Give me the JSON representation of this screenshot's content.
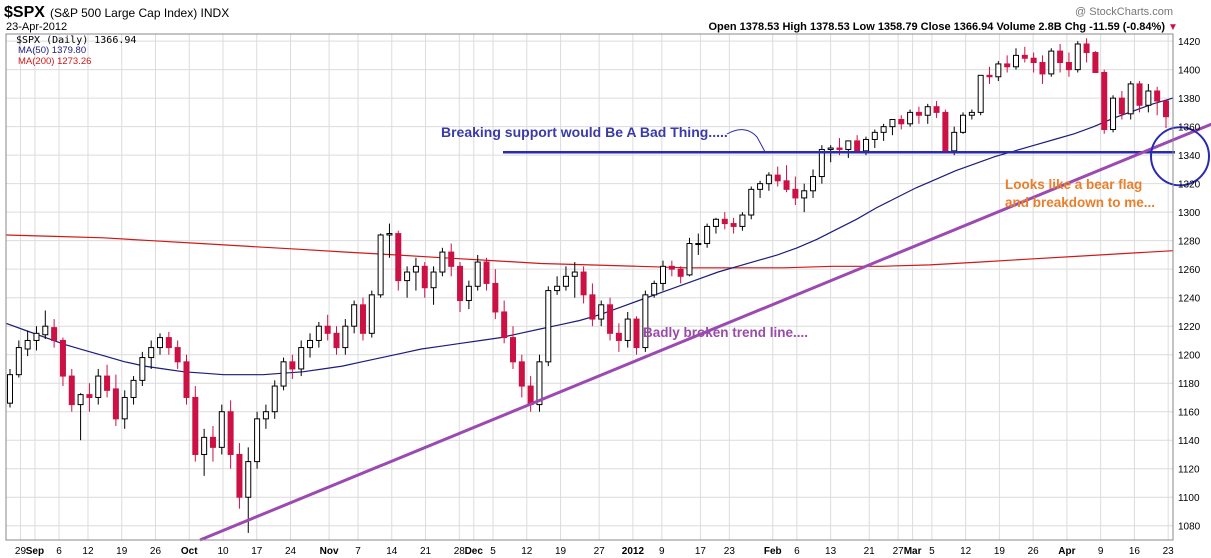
{
  "header": {
    "symbol": "$SPX",
    "name": "(S&P 500 Large Cap Index) INDX",
    "date": "23-Apr-2012",
    "watermark": "@ StockCharts.com",
    "ohlc_text": "Open 1378.53  High 1378.53  Low 1358.79  Close 1366.94  Volume 2.8B  Chg -11.59 (-0.84%)",
    "chg_arrow": "▼"
  },
  "legend": [
    {
      "label": "$SPX (Daily) 1366.94",
      "color": "#000000"
    },
    {
      "label": "MA(50) 1379.80",
      "color": "#1c1c7a"
    },
    {
      "label": "MA(200) 1273.26",
      "color": "#d01818"
    }
  ],
  "annotations": {
    "support": "Breaking support would Be A Bad Thing.....",
    "bear_flag_1": "Looks like a bear flag",
    "bear_flag_2": "and breakdown to me...",
    "trend": "Badly broken trend line...."
  },
  "colors": {
    "up": "#000000",
    "down": "#cc1144",
    "ma50": "#1c1c7a",
    "ma200": "#d01818",
    "support_annot": "#3a3aa8",
    "trend_annot": "#9a4aa8",
    "trend_line": "#9a4ab0",
    "flag_annot": "#e87f2a",
    "grid": "#dcdcdc"
  },
  "chart_data": {
    "type": "candlestick",
    "ylim": [
      1070,
      1425
    ],
    "y_ticks": [
      1080,
      1100,
      1120,
      1140,
      1160,
      1180,
      1200,
      1220,
      1240,
      1260,
      1280,
      1300,
      1320,
      1340,
      1360,
      1380,
      1400,
      1420
    ],
    "x_ticks": [
      {
        "label": "29",
        "date": "2011-08-29"
      },
      {
        "label": "Sep",
        "date": "2011-09-01"
      },
      {
        "label": "6",
        "date": "2011-09-06"
      },
      {
        "label": "12",
        "date": "2011-09-12"
      },
      {
        "label": "19",
        "date": "2011-09-19"
      },
      {
        "label": "26",
        "date": "2011-09-26"
      },
      {
        "label": "Oct",
        "date": "2011-10-03"
      },
      {
        "label": "10",
        "date": "2011-10-10"
      },
      {
        "label": "17",
        "date": "2011-10-17"
      },
      {
        "label": "24",
        "date": "2011-10-24"
      },
      {
        "label": "Nov",
        "date": "2011-11-01"
      },
      {
        "label": "7",
        "date": "2011-11-07"
      },
      {
        "label": "14",
        "date": "2011-11-14"
      },
      {
        "label": "21",
        "date": "2011-11-21"
      },
      {
        "label": "28",
        "date": "2011-11-28"
      },
      {
        "label": "Dec",
        "date": "2011-12-01"
      },
      {
        "label": "5",
        "date": "2011-12-05"
      },
      {
        "label": "12",
        "date": "2011-12-12"
      },
      {
        "label": "19",
        "date": "2011-12-19"
      },
      {
        "label": "27",
        "date": "2011-12-27"
      },
      {
        "label": "2012",
        "date": "2012-01-03"
      },
      {
        "label": "9",
        "date": "2012-01-09"
      },
      {
        "label": "17",
        "date": "2012-01-17"
      },
      {
        "label": "23",
        "date": "2012-01-23"
      },
      {
        "label": "Feb",
        "date": "2012-02-01"
      },
      {
        "label": "6",
        "date": "2012-02-06"
      },
      {
        "label": "13",
        "date": "2012-02-13"
      },
      {
        "label": "21",
        "date": "2012-02-21"
      },
      {
        "label": "27",
        "date": "2012-02-27"
      },
      {
        "label": "Mar",
        "date": "2012-03-01"
      },
      {
        "label": "5",
        "date": "2012-03-05"
      },
      {
        "label": "12",
        "date": "2012-03-12"
      },
      {
        "label": "19",
        "date": "2012-03-19"
      },
      {
        "label": "26",
        "date": "2012-03-26"
      },
      {
        "label": "Apr",
        "date": "2012-04-02"
      },
      {
        "label": "9",
        "date": "2012-04-09"
      },
      {
        "label": "16",
        "date": "2012-04-16"
      },
      {
        "label": "23",
        "date": "2012-04-23"
      }
    ],
    "candles": [
      [
        1166,
        1190,
        1163,
        1186
      ],
      [
        1186,
        1210,
        1184,
        1205
      ],
      [
        1204,
        1217,
        1199,
        1210
      ],
      [
        1210,
        1220,
        1203,
        1215
      ],
      [
        1214,
        1231,
        1211,
        1220
      ],
      [
        1219,
        1225,
        1205,
        1210
      ],
      [
        1210,
        1212,
        1178,
        1185
      ],
      [
        1185,
        1190,
        1160,
        1165
      ],
      [
        1165,
        1173,
        1140,
        1172
      ],
      [
        1172,
        1180,
        1160,
        1170
      ],
      [
        1170,
        1190,
        1165,
        1185
      ],
      [
        1185,
        1193,
        1170,
        1175
      ],
      [
        1176,
        1186,
        1150,
        1155
      ],
      [
        1155,
        1175,
        1148,
        1170
      ],
      [
        1170,
        1185,
        1165,
        1182
      ],
      [
        1182,
        1202,
        1178,
        1198
      ],
      [
        1198,
        1210,
        1190,
        1205
      ],
      [
        1205,
        1215,
        1200,
        1212
      ],
      [
        1212,
        1216,
        1200,
        1205
      ],
      [
        1205,
        1210,
        1190,
        1195
      ],
      [
        1195,
        1200,
        1165,
        1170
      ],
      [
        1170,
        1178,
        1125,
        1130
      ],
      [
        1130,
        1148,
        1115,
        1142
      ],
      [
        1142,
        1150,
        1125,
        1135
      ],
      [
        1135,
        1165,
        1130,
        1160
      ],
      [
        1160,
        1168,
        1120,
        1130
      ],
      [
        1130,
        1138,
        1092,
        1100
      ],
      [
        1100,
        1135,
        1075,
        1125
      ],
      [
        1125,
        1160,
        1120,
        1155
      ],
      [
        1155,
        1165,
        1148,
        1160
      ],
      [
        1160,
        1182,
        1155,
        1178
      ],
      [
        1178,
        1198,
        1175,
        1195
      ],
      [
        1195,
        1200,
        1183,
        1190
      ],
      [
        1190,
        1210,
        1185,
        1205
      ],
      [
        1205,
        1215,
        1198,
        1210
      ],
      [
        1210,
        1223,
        1205,
        1220
      ],
      [
        1220,
        1228,
        1210,
        1215
      ],
      [
        1215,
        1220,
        1200,
        1205
      ],
      [
        1205,
        1225,
        1200,
        1220
      ],
      [
        1220,
        1238,
        1215,
        1235
      ],
      [
        1235,
        1240,
        1210,
        1215
      ],
      [
        1215,
        1245,
        1212,
        1242
      ],
      [
        1242,
        1285,
        1240,
        1284
      ],
      [
        1284,
        1292,
        1268,
        1285
      ],
      [
        1285,
        1287,
        1245,
        1252
      ],
      [
        1252,
        1262,
        1240,
        1258
      ],
      [
        1258,
        1268,
        1245,
        1262
      ],
      [
        1262,
        1265,
        1240,
        1247
      ],
      [
        1247,
        1262,
        1235,
        1258
      ],
      [
        1258,
        1275,
        1255,
        1272
      ],
      [
        1272,
        1278,
        1255,
        1262
      ],
      [
        1262,
        1265,
        1230,
        1238
      ],
      [
        1238,
        1252,
        1232,
        1248
      ],
      [
        1248,
        1270,
        1245,
        1265
      ],
      [
        1265,
        1268,
        1245,
        1250
      ],
      [
        1250,
        1260,
        1225,
        1230
      ],
      [
        1230,
        1238,
        1208,
        1212
      ],
      [
        1212,
        1220,
        1190,
        1195
      ],
      [
        1195,
        1200,
        1170,
        1178
      ],
      [
        1178,
        1185,
        1160,
        1165
      ],
      [
        1165,
        1200,
        1160,
        1195
      ],
      [
        1195,
        1248,
        1192,
        1245
      ],
      [
        1245,
        1255,
        1242,
        1248
      ],
      [
        1248,
        1262,
        1245,
        1255
      ],
      [
        1255,
        1265,
        1240,
        1258
      ],
      [
        1258,
        1262,
        1236,
        1242
      ],
      [
        1242,
        1250,
        1220,
        1225
      ],
      [
        1225,
        1238,
        1220,
        1235
      ],
      [
        1235,
        1240,
        1210,
        1215
      ],
      [
        1215,
        1222,
        1202,
        1210
      ],
      [
        1210,
        1230,
        1205,
        1225
      ],
      [
        1225,
        1227,
        1200,
        1205
      ],
      [
        1205,
        1245,
        1202,
        1242
      ],
      [
        1242,
        1252,
        1240,
        1250
      ],
      [
        1250,
        1266,
        1245,
        1262
      ],
      [
        1262,
        1266,
        1255,
        1260
      ],
      [
        1260,
        1262,
        1250,
        1255
      ],
      [
        1256,
        1282,
        1255,
        1278
      ],
      [
        1278,
        1285,
        1270,
        1278
      ],
      [
        1278,
        1292,
        1275,
        1290
      ],
      [
        1290,
        1296,
        1285,
        1295
      ],
      [
        1295,
        1300,
        1288,
        1292
      ],
      [
        1292,
        1296,
        1285,
        1290
      ],
      [
        1290,
        1300,
        1287,
        1298
      ],
      [
        1298,
        1318,
        1295,
        1316
      ],
      [
        1316,
        1322,
        1310,
        1320
      ],
      [
        1320,
        1328,
        1315,
        1326
      ],
      [
        1326,
        1332,
        1318,
        1322
      ],
      [
        1322,
        1333,
        1314,
        1316
      ],
      [
        1316,
        1325,
        1305,
        1310
      ],
      [
        1310,
        1320,
        1300,
        1315
      ],
      [
        1315,
        1330,
        1310,
        1325
      ],
      [
        1325,
        1347,
        1320,
        1344
      ],
      [
        1344,
        1347,
        1335,
        1345
      ],
      [
        1345,
        1352,
        1340,
        1344
      ],
      [
        1344,
        1350,
        1338,
        1350
      ],
      [
        1350,
        1354,
        1342,
        1343
      ],
      [
        1343,
        1353,
        1340,
        1351
      ],
      [
        1351,
        1358,
        1345,
        1356
      ],
      [
        1356,
        1362,
        1350,
        1360
      ],
      [
        1360,
        1365,
        1354,
        1365
      ],
      [
        1365,
        1368,
        1358,
        1362
      ],
      [
        1362,
        1372,
        1360,
        1370
      ],
      [
        1370,
        1374,
        1362,
        1368
      ],
      [
        1368,
        1376,
        1362,
        1374
      ],
      [
        1374,
        1378,
        1366,
        1370
      ],
      [
        1370,
        1372,
        1345,
        1343
      ],
      [
        1343,
        1360,
        1340,
        1356
      ],
      [
        1356,
        1370,
        1355,
        1368
      ],
      [
        1368,
        1372,
        1365,
        1370
      ],
      [
        1370,
        1396,
        1368,
        1396
      ],
      [
        1396,
        1402,
        1390,
        1395
      ],
      [
        1395,
        1406,
        1392,
        1404
      ],
      [
        1404,
        1410,
        1398,
        1402
      ],
      [
        1402,
        1415,
        1400,
        1410
      ],
      [
        1410,
        1416,
        1405,
        1408
      ],
      [
        1408,
        1412,
        1398,
        1405
      ],
      [
        1405,
        1410,
        1390,
        1397
      ],
      [
        1397,
        1415,
        1395,
        1413
      ],
      [
        1413,
        1418,
        1398,
        1405
      ],
      [
        1405,
        1412,
        1395,
        1400
      ],
      [
        1400,
        1420,
        1398,
        1418
      ],
      [
        1418,
        1422,
        1405,
        1412
      ],
      [
        1412,
        1413,
        1398,
        1398
      ],
      [
        1398,
        1400,
        1355,
        1358
      ],
      [
        1358,
        1382,
        1356,
        1380
      ],
      [
        1380,
        1385,
        1365,
        1369
      ],
      [
        1369,
        1392,
        1365,
        1390
      ],
      [
        1390,
        1392,
        1370,
        1375
      ],
      [
        1375,
        1390,
        1370,
        1385
      ],
      [
        1385,
        1388,
        1368,
        1378
      ],
      [
        1378,
        1378,
        1359,
        1367
      ]
    ],
    "ma50_values": [
      1222,
      1217,
      1212,
      1207,
      1203,
      1199,
      1195,
      1192,
      1190,
      1188,
      1187,
      1186,
      1186,
      1186,
      1187,
      1188,
      1190,
      1192,
      1195,
      1198,
      1201,
      1204,
      1206,
      1208,
      1210,
      1212,
      1215,
      1218,
      1221,
      1224,
      1228,
      1233,
      1238,
      1243,
      1248,
      1253,
      1258,
      1262,
      1266,
      1270,
      1275,
      1281,
      1288,
      1295,
      1303,
      1310,
      1317,
      1323,
      1329,
      1334,
      1339,
      1343,
      1347,
      1351,
      1355,
      1360,
      1366,
      1371,
      1376,
      1380
    ],
    "ma200_values": [
      1284,
      1283,
      1282,
      1280,
      1278,
      1276,
      1274,
      1272,
      1270,
      1268,
      1266,
      1264,
      1263,
      1262,
      1261,
      1261,
      1261,
      1262,
      1262,
      1263,
      1265,
      1267,
      1269,
      1271,
      1273
    ],
    "support_level": 1342,
    "trend_line": {
      "from": [
        0,
        1070
      ],
      "to": [
        161,
        1425
      ]
    },
    "flag_channel": {
      "upper": {
        "from": [
          148,
          1365
        ],
        "to": [
          161,
          1401
        ]
      },
      "lower": {
        "from": [
          152,
          1345
        ],
        "to": [
          161,
          1381
        ]
      },
      "base": {
        "from": [
          146,
          1336
        ],
        "to": [
          161,
          1341
        ]
      }
    }
  }
}
